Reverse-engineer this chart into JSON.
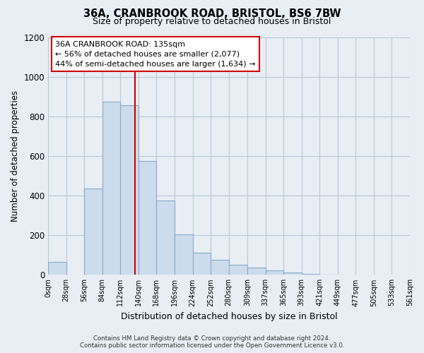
{
  "title": "36A, CRANBROOK ROAD, BRISTOL, BS6 7BW",
  "subtitle": "Size of property relative to detached houses in Bristol",
  "xlabel": "Distribution of detached houses by size in Bristol",
  "ylabel": "Number of detached properties",
  "bar_left_edges": [
    0,
    28,
    56,
    84,
    112,
    140,
    168,
    196,
    224,
    252,
    280,
    309,
    337,
    365,
    393,
    421,
    449,
    477,
    505,
    533
  ],
  "bar_widths": [
    28,
    28,
    28,
    28,
    28,
    28,
    28,
    28,
    28,
    28,
    29,
    28,
    28,
    28,
    28,
    28,
    28,
    28,
    28,
    28
  ],
  "bar_heights": [
    65,
    0,
    435,
    875,
    855,
    575,
    375,
    205,
    110,
    75,
    50,
    38,
    22,
    12,
    5,
    2,
    0,
    0,
    0,
    0
  ],
  "tick_labels": [
    "0sqm",
    "28sqm",
    "56sqm",
    "84sqm",
    "112sqm",
    "140sqm",
    "168sqm",
    "196sqm",
    "224sqm",
    "252sqm",
    "280sqm",
    "309sqm",
    "337sqm",
    "365sqm",
    "393sqm",
    "421sqm",
    "449sqm",
    "477sqm",
    "505sqm",
    "533sqm",
    "561sqm"
  ],
  "bar_color": "#ccdcec",
  "bar_edge_color": "#88aacc",
  "vline_x": 135,
  "vline_color": "#cc0000",
  "ylim": [
    0,
    1200
  ],
  "yticks": [
    0,
    200,
    400,
    600,
    800,
    1000,
    1200
  ],
  "annotation_title": "36A CRANBROOK ROAD: 135sqm",
  "annotation_line1": "← 56% of detached houses are smaller (2,077)",
  "annotation_line2": "44% of semi-detached houses are larger (1,634) →",
  "footer1": "Contains HM Land Registry data © Crown copyright and database right 2024.",
  "footer2": "Contains public sector information licensed under the Open Government Licence v3.0.",
  "fig_bg_color": "#e8eef4",
  "plot_bg_color": "#e8eef4",
  "grid_color": "#b8c8d8"
}
